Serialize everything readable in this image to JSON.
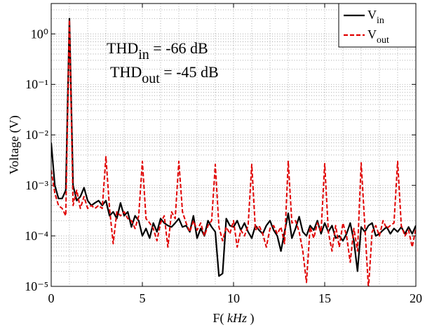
{
  "chart_data": {
    "type": "line",
    "xlabel": [
      "F( ",
      "kHz",
      " )"
    ],
    "ylabel": "Voltage (V)",
    "annotations": [
      {
        "text": "THD",
        "sub": "in",
        "rest": " = -66 dB"
      },
      {
        "text": "THD",
        "sub": "out",
        "rest": " = -45 dB"
      }
    ],
    "log_y": true,
    "grid": true,
    "legend": "upper right",
    "xlim": [
      0,
      20
    ],
    "xticks": [
      0,
      5,
      10,
      15,
      20
    ],
    "xminorticks": [
      1,
      2,
      3,
      4,
      6,
      7,
      8,
      9,
      11,
      12,
      13,
      14,
      16,
      17,
      18,
      19
    ],
    "ylim": [
      1e-05,
      4
    ],
    "yticks": [
      {
        "value": 1e-05,
        "label": "10⁻⁵"
      },
      {
        "value": 0.0001,
        "label": "10⁻⁴"
      },
      {
        "value": 0.001,
        "label": "10⁻³"
      },
      {
        "value": 0.01,
        "label": "10⁻²"
      },
      {
        "value": 0.1,
        "label": "10⁻¹"
      },
      {
        "value": 1,
        "label": "10⁰"
      }
    ],
    "yminorticks": [
      2e-05,
      3e-05,
      4e-05,
      5e-05,
      6e-05,
      7e-05,
      8e-05,
      9e-05,
      0.0002,
      0.0003,
      0.0004,
      0.0005,
      0.0006,
      0.0007,
      0.0008,
      0.0009,
      0.002,
      0.003,
      0.004,
      0.005,
      0.006,
      0.007,
      0.008,
      0.009,
      0.02,
      0.03,
      0.04,
      0.05,
      0.06,
      0.07,
      0.08,
      0.09,
      0.2,
      0.3,
      0.4,
      0.5,
      0.6,
      0.7,
      0.8,
      0.9,
      2,
      3
    ],
    "x": [
      0,
      0.2,
      0.4,
      0.6,
      0.8,
      1,
      1.2,
      1.4,
      1.6,
      1.8,
      2,
      2.2,
      2.4,
      2.6,
      2.8,
      3,
      3.2,
      3.4,
      3.6,
      3.8,
      4,
      4.2,
      4.4,
      4.6,
      4.8,
      5,
      5.2,
      5.4,
      5.6,
      5.8,
      6,
      6.2,
      6.4,
      6.6,
      6.8,
      7,
      7.2,
      7.4,
      7.6,
      7.8,
      8,
      8.2,
      8.4,
      8.6,
      8.8,
      9,
      9.2,
      9.4,
      9.6,
      9.8,
      10,
      10.2,
      10.4,
      10.6,
      10.8,
      11,
      11.2,
      11.4,
      11.6,
      11.8,
      12,
      12.2,
      12.4,
      12.6,
      12.8,
      13,
      13.2,
      13.4,
      13.6,
      13.8,
      14,
      14.2,
      14.4,
      14.6,
      14.8,
      15,
      15.2,
      15.4,
      15.6,
      15.8,
      16,
      16.2,
      16.4,
      16.6,
      16.8,
      17,
      17.2,
      17.4,
      17.6,
      17.8,
      18,
      18.2,
      18.4,
      18.6,
      18.8,
      19,
      19.2,
      19.4,
      19.6,
      19.8,
      20
    ],
    "series": [
      {
        "name": "V",
        "name_sub": "in",
        "color": "#000000",
        "dash": false,
        "values": [
          0.007,
          0.001,
          0.00055,
          0.00055,
          0.0008,
          2,
          0.001,
          0.0005,
          0.0006,
          0.0009,
          0.0005,
          0.0004,
          0.00045,
          0.0005,
          0.0004,
          0.0005,
          0.00025,
          0.0003,
          0.00022,
          0.00045,
          0.00025,
          0.0003,
          0.00015,
          0.00025,
          0.0002,
          0.0001,
          0.00014,
          9e-05,
          0.00018,
          0.00012,
          0.00022,
          0.00018,
          0.00016,
          0.00015,
          0.00018,
          0.00022,
          0.00015,
          0.00016,
          0.00012,
          0.00025,
          9e-05,
          0.00014,
          0.0001,
          0.0002,
          0.00015,
          0.00012,
          1.6e-05,
          1.8e-05,
          0.00022,
          0.00016,
          0.00015,
          0.0002,
          0.00013,
          0.00018,
          0.00012,
          9e-05,
          0.00016,
          0.00013,
          0.00011,
          0.00016,
          0.0002,
          0.00013,
          0.0001,
          5e-05,
          0.00012,
          0.00028,
          9e-05,
          0.00014,
          0.00024,
          0.00012,
          0.0001,
          0.00016,
          0.00013,
          0.0002,
          0.00011,
          0.00018,
          0.00012,
          0.00016,
          9e-05,
          0.0001,
          8e-05,
          0.00011,
          0.00018,
          8e-05,
          2e-05,
          0.00015,
          0.00012,
          0.00016,
          0.00018,
          0.0001,
          0.00011,
          0.00013,
          0.00015,
          0.00011,
          0.00014,
          0.00012,
          0.00015,
          0.00011,
          0.00015,
          0.00011,
          0.00016
        ]
      },
      {
        "name": "V",
        "name_sub": "out",
        "color": "#e00000",
        "dash": true,
        "values": [
          0.002,
          0.0007,
          0.0004,
          0.00035,
          0.00025,
          1.9,
          0.0004,
          0.0008,
          0.00035,
          0.0006,
          0.00035,
          0.0004,
          0.00035,
          0.0004,
          0.00035,
          0.0037,
          0.00035,
          7e-05,
          0.0003,
          0.00025,
          0.0003,
          0.00022,
          0.0002,
          0.00014,
          0.00025,
          0.003,
          0.00022,
          0.00018,
          0.00014,
          8e-05,
          0.00018,
          0.00025,
          6e-05,
          0.0003,
          0.00022,
          0.003,
          0.0003,
          0.00018,
          0.00012,
          0.0002,
          0.00013,
          0.00018,
          0.0001,
          0.00016,
          0.0002,
          0.0026,
          0.00015,
          8e-05,
          0.00015,
          0.00011,
          0.0002,
          6e-05,
          0.00013,
          0.0001,
          0.00016,
          0.0026,
          0.00013,
          0.00016,
          0.00011,
          6e-05,
          0.00014,
          0.00016,
          0.00011,
          0.00015,
          7e-05,
          0.003,
          0.00018,
          0.0002,
          0.00012,
          5e-05,
          1.2e-05,
          0.00015,
          9e-05,
          0.00018,
          0.00012,
          0.0027,
          0.00012,
          5e-05,
          0.00016,
          6e-05,
          0.00018,
          0.0001,
          3e-05,
          0.00014,
          5e-05,
          0.0028,
          0.00016,
          9e-06,
          0.00012,
          0.00016,
          0.0001,
          0.0002,
          0.00014,
          0.00016,
          0.00018,
          0.003,
          0.00016,
          0.0001,
          0.00013,
          6e-05,
          0.00014
        ]
      }
    ]
  }
}
